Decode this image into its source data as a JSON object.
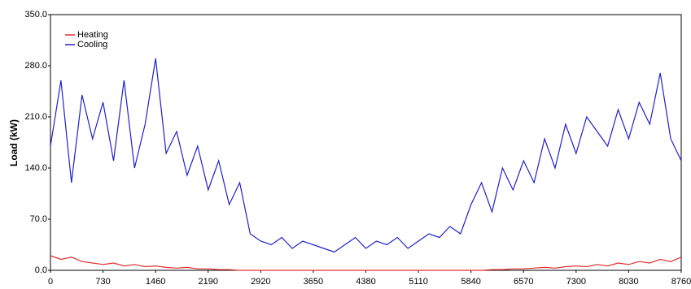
{
  "chart_data": {
    "type": "line",
    "y_label": "Load (kW)",
    "x": [
      0,
      146,
      292,
      438,
      584,
      730,
      876,
      1022,
      1168,
      1314,
      1460,
      1606,
      1752,
      1898,
      2044,
      2190,
      2336,
      2482,
      2628,
      2774,
      2920,
      3066,
      3212,
      3358,
      3504,
      3650,
      3796,
      3942,
      4088,
      4234,
      4380,
      4526,
      4672,
      4818,
      4964,
      5110,
      5256,
      5402,
      5548,
      5694,
      5840,
      5986,
      6132,
      6278,
      6424,
      6570,
      6716,
      6862,
      7008,
      7154,
      7300,
      7446,
      7592,
      7738,
      7884,
      8030,
      8176,
      8322,
      8468,
      8614,
      8760
    ],
    "series": [
      {
        "name": "Heating",
        "color": "#e03030",
        "values": [
          20,
          15,
          18,
          12,
          10,
          8,
          10,
          6,
          8,
          5,
          6,
          4,
          3,
          4,
          2,
          2,
          1,
          1,
          0,
          0,
          0,
          0,
          0,
          0,
          0,
          0,
          0,
          0,
          0,
          0,
          0,
          0,
          0,
          0,
          0,
          0,
          0,
          0,
          0,
          0,
          0,
          0,
          1,
          1,
          2,
          2,
          3,
          4,
          3,
          5,
          6,
          5,
          8,
          6,
          10,
          8,
          12,
          10,
          15,
          12,
          18
        ]
      },
      {
        "name": "Cooling",
        "color": "#2020cc",
        "values": [
          170,
          260,
          120,
          240,
          180,
          230,
          150,
          260,
          140,
          200,
          290,
          160,
          190,
          130,
          170,
          110,
          150,
          90,
          120,
          50,
          40,
          35,
          45,
          30,
          40,
          35,
          30,
          25,
          35,
          45,
          30,
          40,
          35,
          45,
          30,
          40,
          50,
          45,
          60,
          50,
          90,
          120,
          80,
          140,
          110,
          150,
          120,
          180,
          140,
          200,
          160,
          210,
          190,
          170,
          220,
          180,
          230,
          200,
          270,
          180,
          150
        ]
      }
    ],
    "xlim": [
      0,
      8760
    ],
    "xticks": [
      0,
      730,
      1460,
      2190,
      2920,
      3650,
      4380,
      5110,
      5840,
      6570,
      7300,
      8030,
      8760
    ],
    "ylim": [
      0,
      350
    ],
    "yticks": [
      {
        "value": 0,
        "label": "0.0"
      },
      {
        "value": 70,
        "label": "70.0"
      },
      {
        "value": 140,
        "label": "140.0"
      },
      {
        "value": 210,
        "label": "210.0"
      },
      {
        "value": 280,
        "label": "280.0"
      },
      {
        "value": 350,
        "label": "350.0"
      }
    ],
    "legend": "upper left"
  }
}
